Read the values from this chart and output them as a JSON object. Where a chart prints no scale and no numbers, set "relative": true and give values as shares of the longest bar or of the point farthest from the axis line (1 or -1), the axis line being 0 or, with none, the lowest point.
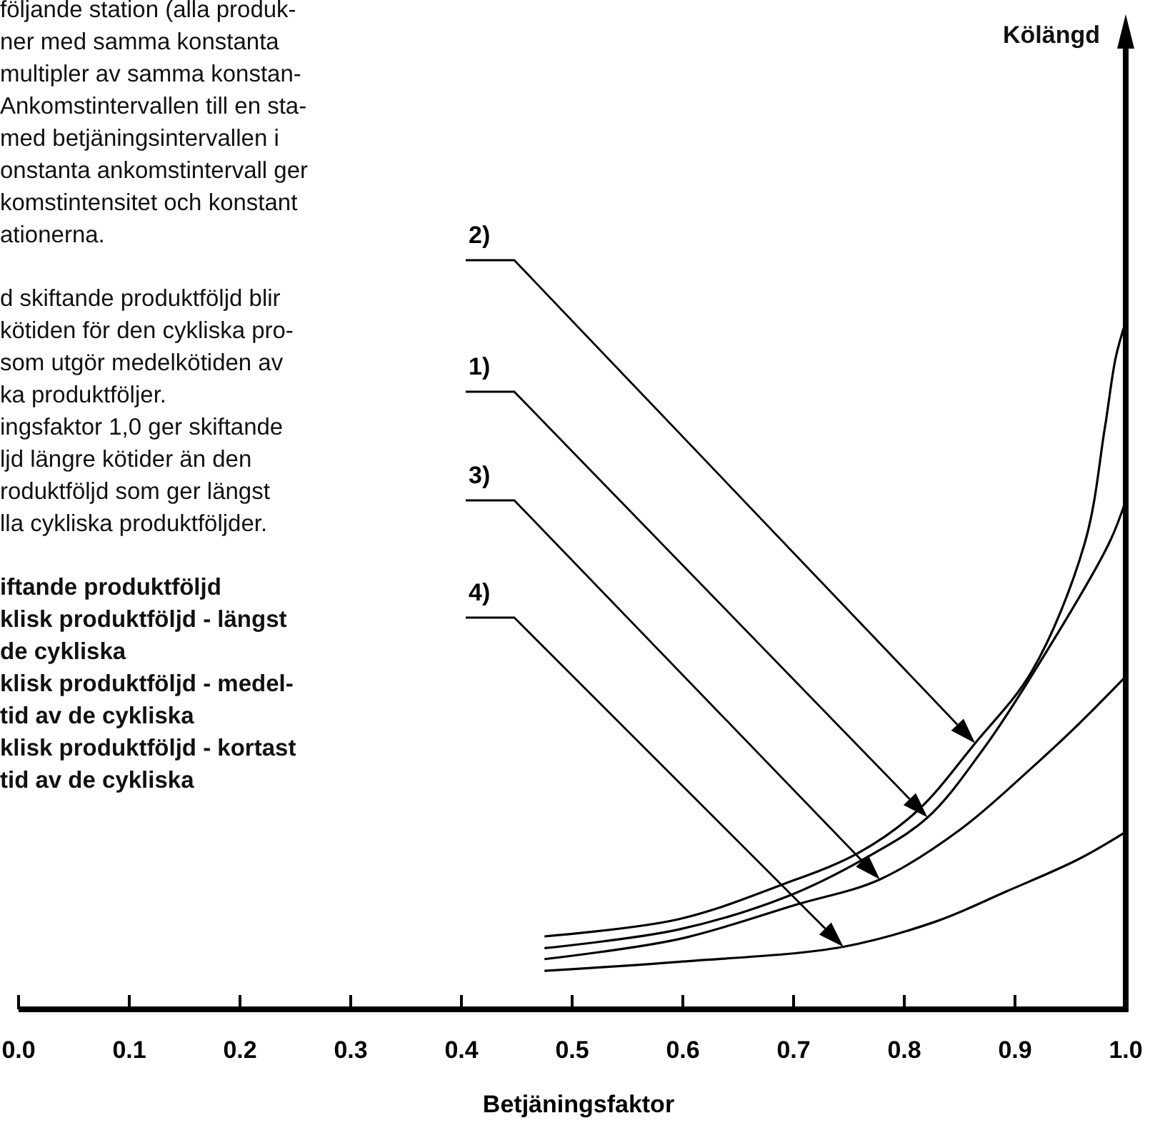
{
  "chart_data": {
    "type": "line",
    "relative": true,
    "xlabel": "Betjäningsfaktor",
    "xlim": [
      0,
      1
    ],
    "xticks": [
      {
        "value": 0,
        "label": "0.0"
      },
      {
        "value": 0.1,
        "label": "0.1"
      },
      {
        "value": 0.2,
        "label": "0.2"
      },
      {
        "value": 0.3,
        "label": "0.3"
      },
      {
        "value": 0.4,
        "label": "0.4"
      },
      {
        "value": 0.5,
        "label": "0.5"
      },
      {
        "value": 0.6,
        "label": "0.6"
      },
      {
        "value": 0.7,
        "label": "0.7"
      },
      {
        "value": 0.8,
        "label": "0.8"
      },
      {
        "value": 0.9,
        "label": "0.9"
      },
      {
        "value": 1,
        "label": "1.0"
      }
    ],
    "series": [
      {
        "name": "2)",
        "color": "#000000",
        "x": [
          0.475,
          0.596,
          0.689,
          0.758,
          0.812,
          0.864,
          0.915,
          0.963,
          0.981,
          0.991,
          1.0
        ],
        "values": [
          0.106,
          0.131,
          0.181,
          0.227,
          0.289,
          0.387,
          0.491,
          0.678,
          0.844,
          0.948,
          1.0
        ]
      },
      {
        "name": "1)",
        "color": "#000000",
        "x": [
          0.475,
          0.596,
          0.694,
          0.765,
          0.821,
          0.872,
          0.915,
          0.985,
          1.0
        ],
        "values": [
          0.089,
          0.116,
          0.164,
          0.22,
          0.279,
          0.38,
          0.485,
          0.678,
          0.74
        ]
      },
      {
        "name": "3)",
        "color": "#000000",
        "x": [
          0.475,
          0.596,
          0.702,
          0.778,
          0.851,
          0.915,
          0.957,
          1.0
        ],
        "values": [
          0.073,
          0.102,
          0.152,
          0.189,
          0.262,
          0.351,
          0.414,
          0.484
        ]
      },
      {
        "name": "4)",
        "color": "#000000",
        "x": [
          0.475,
          0.596,
          0.745,
          0.829,
          0.893,
          0.957,
          1.0
        ],
        "values": [
          0.056,
          0.069,
          0.091,
          0.128,
          0.172,
          0.218,
          0.258
        ]
      }
    ],
    "annotations": [
      "följande station (alla produk-\nner med samma konstanta\nmultipler av samma konstan-\nAnkomstintervallen till en sta-\nmed betjäningsintervallen i\nonstanta ankomstintervall ger\nkomstintensitet och konstant\nationerna.",
      "d skiftande produktföljd blir\nkötiden för den cykliska pro-\nsom utgör medelkötiden av\nka produktföljer.\ningsfaktor 1,0 ger skiftande\nljd längre kötider än den\nroduktföljd som ger längst\nlla cykliska produktföljder.",
      "iftande produktföljd\nklisk produktföljd - längst\nde cykliska\nklisk produktföljd - medel-\ntid av de cykliska\nklisk produktföljd - kortast\ntid av de cykliska",
      "Kölängd"
    ]
  }
}
